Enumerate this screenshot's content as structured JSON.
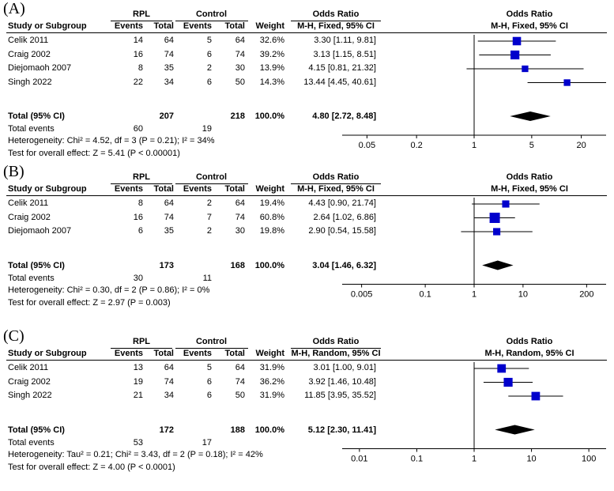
{
  "chart_data": [
    {
      "type": "forest",
      "panel_label": "(A)",
      "group1": "RPL",
      "group2": "Control",
      "headers": {
        "study": "Study or Subgroup",
        "events": "Events",
        "total": "Total",
        "weight": "Weight",
        "or_title": "Odds Ratio",
        "or_method": "M-H, Fixed, 95% CI",
        "plot_title": "Odds Ratio",
        "plot_method": "M-H, Fixed, 95% CI"
      },
      "studies": [
        {
          "name": "Celik 2011",
          "e1": "14",
          "n1": "64",
          "e2": "5",
          "n2": "64",
          "weight": "32.6%",
          "or_text": "3.30 [1.11, 9.81]",
          "or": 3.3,
          "lo": 1.11,
          "hi": 9.81,
          "w": 32.6
        },
        {
          "name": "Craig 2002",
          "e1": "16",
          "n1": "74",
          "e2": "6",
          "n2": "74",
          "weight": "39.2%",
          "or_text": "3.13 [1.15, 8.51]",
          "or": 3.13,
          "lo": 1.15,
          "hi": 8.51,
          "w": 39.2
        },
        {
          "name": "Diejomaoh 2007",
          "e1": "8",
          "n1": "35",
          "e2": "2",
          "n2": "30",
          "weight": "13.9%",
          "or_text": "4.15 [0.81, 21.32]",
          "or": 4.15,
          "lo": 0.81,
          "hi": 21.32,
          "w": 13.9
        },
        {
          "name": "Singh 2022",
          "e1": "22",
          "n1": "34",
          "e2": "6",
          "n2": "50",
          "weight": "14.3%",
          "or_text": "13.44 [4.45, 40.61]",
          "or": 13.44,
          "lo": 4.45,
          "hi": 40.61,
          "w": 14.3
        }
      ],
      "total": {
        "label": "Total (95% CI)",
        "n1": "207",
        "n2": "218",
        "weight": "100.0%",
        "or_text": "4.80 [2.72, 8.48]",
        "or": 4.8,
        "lo": 2.72,
        "hi": 8.48
      },
      "total_events": {
        "label": "Total events",
        "e1": "60",
        "e2": "19"
      },
      "heterogeneity": "Heterogeneity: Chi² = 4.52, df = 3 (P = 0.21); I² = 34%",
      "overall_effect": "Test for overall effect: Z = 5.41 (P < 0.00001)",
      "axis": {
        "min": 0.025,
        "max": 40,
        "ticks": [
          0.05,
          0.2,
          1,
          5,
          20
        ],
        "tick_labels": [
          "0.05",
          "0.2",
          "1",
          "5",
          "20"
        ]
      }
    },
    {
      "type": "forest",
      "panel_label": "(B)",
      "group1": "RPL",
      "group2": "Control",
      "headers": {
        "study": "Study or Subgroup",
        "events": "Events",
        "total": "Total",
        "weight": "Weight",
        "or_title": "Odds Ratio",
        "or_method": "M-H, Fixed, 95% CI",
        "plot_title": "Odds Ratio",
        "plot_method": "M-H, Fixed, 95% CI"
      },
      "studies": [
        {
          "name": "Celik 2011",
          "e1": "8",
          "n1": "64",
          "e2": "2",
          "n2": "64",
          "weight": "19.4%",
          "or_text": "4.43 [0.90, 21.74]",
          "or": 4.43,
          "lo": 0.9,
          "hi": 21.74,
          "w": 19.4
        },
        {
          "name": "Craig 2002",
          "e1": "16",
          "n1": "74",
          "e2": "7",
          "n2": "74",
          "weight": "60.8%",
          "or_text": "2.64 [1.02, 6.86]",
          "or": 2.64,
          "lo": 1.02,
          "hi": 6.86,
          "w": 60.8
        },
        {
          "name": "Diejomaoh 2007",
          "e1": "6",
          "n1": "35",
          "e2": "2",
          "n2": "30",
          "weight": "19.8%",
          "or_text": "2.90 [0.54, 15.58]",
          "or": 2.9,
          "lo": 0.54,
          "hi": 15.58,
          "w": 19.8
        }
      ],
      "total": {
        "label": "Total (95% CI)",
        "n1": "173",
        "n2": "168",
        "weight": "100.0%",
        "or_text": "3.04 [1.46, 6.32]",
        "or": 3.04,
        "lo": 1.46,
        "hi": 6.32
      },
      "total_events": {
        "label": "Total events",
        "e1": "30",
        "e2": "11"
      },
      "heterogeneity": "Heterogeneity: Chi² = 0.30, df = 2 (P = 0.86); I² = 0%",
      "overall_effect": "Test for overall effect: Z = 2.97 (P = 0.003)",
      "axis": {
        "min": 0.002,
        "max": 500,
        "ticks": [
          0.005,
          0.1,
          1,
          10,
          200
        ],
        "tick_labels": [
          "0.005",
          "0.1",
          "1",
          "10",
          "200"
        ]
      }
    },
    {
      "type": "forest",
      "panel_label": "(C)",
      "group1": "RPL",
      "group2": "Control",
      "headers": {
        "study": "Study or Subgroup",
        "events": "Events",
        "total": "Total",
        "weight": "Weight",
        "or_title": "Odds Ratio",
        "or_method": "M-H, Random, 95% CI",
        "plot_title": "Odds Ratio",
        "plot_method": "M-H, Random, 95% CI"
      },
      "studies": [
        {
          "name": "Celik 2011",
          "e1": "13",
          "n1": "64",
          "e2": "5",
          "n2": "64",
          "weight": "31.9%",
          "or_text": "3.01 [1.00, 9.01]",
          "or": 3.01,
          "lo": 1.0,
          "hi": 9.01,
          "w": 31.9
        },
        {
          "name": "Craig 2002",
          "e1": "19",
          "n1": "74",
          "e2": "6",
          "n2": "74",
          "weight": "36.2%",
          "or_text": "3.92 [1.46, 10.48]",
          "or": 3.92,
          "lo": 1.46,
          "hi": 10.48,
          "w": 36.2
        },
        {
          "name": "Singh 2022",
          "e1": "21",
          "n1": "34",
          "e2": "6",
          "n2": "50",
          "weight": "31.9%",
          "or_text": "11.85 [3.95, 35.52]",
          "or": 11.85,
          "lo": 3.95,
          "hi": 35.52,
          "w": 31.9
        }
      ],
      "total": {
        "label": "Total (95% CI)",
        "n1": "172",
        "n2": "188",
        "weight": "100.0%",
        "or_text": "5.12 [2.30, 11.41]",
        "or": 5.12,
        "lo": 2.3,
        "hi": 11.41
      },
      "total_events": {
        "label": "Total events",
        "e1": "53",
        "e2": "17"
      },
      "heterogeneity": "Heterogeneity: Tau² = 0.21; Chi² = 3.43, df = 2 (P = 0.18); I² = 42%",
      "overall_effect": "Test for overall effect: Z = 4.00 (P < 0.0001)",
      "axis": {
        "min": 0.005,
        "max": 200,
        "ticks": [
          0.01,
          0.1,
          1,
          10,
          100
        ],
        "tick_labels": [
          "0.01",
          "0.1",
          "1",
          "10",
          "100"
        ]
      }
    }
  ],
  "colors": {
    "marker": "#0000cc",
    "text": "#000000"
  }
}
